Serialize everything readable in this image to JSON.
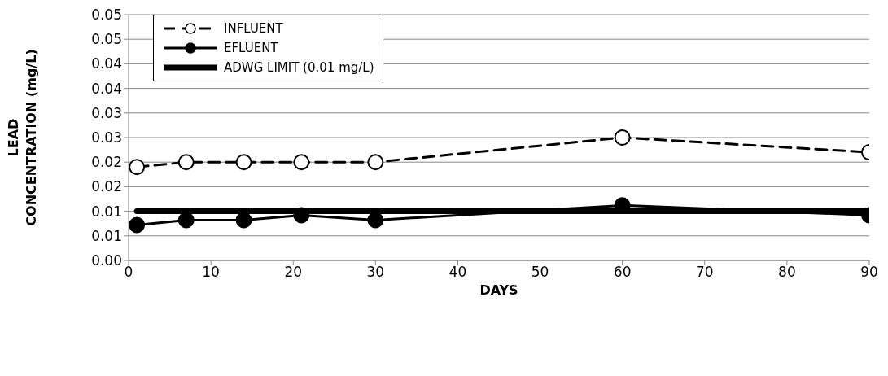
{
  "chart_data": {
    "type": "line",
    "xlabel": "DAYS",
    "ylabel": "LEAD CONCENTRATION (mg/L)",
    "xlim": [
      0,
      90
    ],
    "xticks": [
      0,
      10,
      20,
      30,
      40,
      50,
      60,
      70,
      80,
      90
    ],
    "ylim": [
      0,
      0.05
    ],
    "yticks": [
      {
        "value": 0,
        "label": "0.00"
      },
      {
        "value": 0.005,
        "label": "0.01"
      },
      {
        "value": 0.01,
        "label": "0.01"
      },
      {
        "value": 0.015,
        "label": "0.02"
      },
      {
        "value": 0.02,
        "label": "0.02"
      },
      {
        "value": 0.025,
        "label": "0.03"
      },
      {
        "value": 0.03,
        "label": "0.03"
      },
      {
        "value": 0.035,
        "label": "0.04"
      },
      {
        "value": 0.04,
        "label": "0.04"
      },
      {
        "value": 0.045,
        "label": "0.05"
      },
      {
        "value": 0.05,
        "label": "0.05"
      }
    ],
    "grid": "y",
    "legend": "top left",
    "series": [
      {
        "name": "INFLUENT",
        "color": "#000000",
        "line_style": "dashed",
        "marker": "circle",
        "x": [
          1,
          7,
          14,
          21,
          30,
          60,
          90
        ],
        "values": [
          0.019,
          0.02,
          0.02,
          0.02,
          0.02,
          0.025,
          0.022
        ]
      },
      {
        "name": "EFLUENT",
        "color": "#000000",
        "line_style": "solid",
        "marker": "circle",
        "x": [
          1,
          7,
          14,
          21,
          30,
          60,
          90
        ],
        "values": [
          0.0072,
          0.0082,
          0.0082,
          0.0092,
          0.0082,
          0.0112,
          0.0092
        ]
      },
      {
        "name": "ADWG LIMIT (0.01 mg/L)",
        "color": "#000000",
        "line_style": "solid",
        "marker": "none",
        "x": [
          1,
          90
        ],
        "values": [
          0.01,
          0.01
        ]
      }
    ]
  }
}
